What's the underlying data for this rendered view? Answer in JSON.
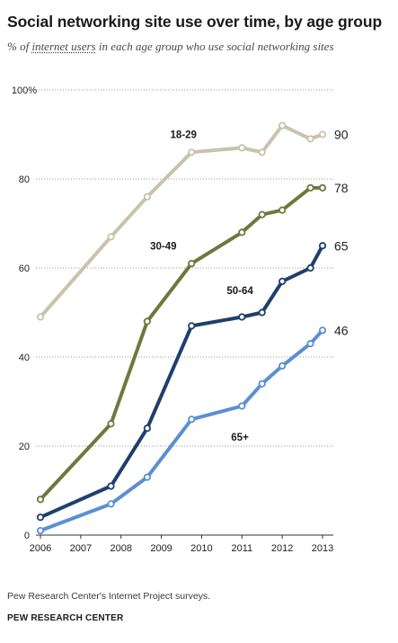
{
  "title": "Social networking site use over time, by age group",
  "subtitle": {
    "prefix": "% of ",
    "underlined": "internet users",
    "suffix": " in each age group who use social networking sites"
  },
  "footer": {
    "source": "Pew Research Center's Internet Project surveys.",
    "brand": "PEW RESEARCH CENTER"
  },
  "chart_data": {
    "type": "line",
    "title": "Social networking site use over time, by age group",
    "xlabel": "",
    "ylabel": "",
    "xlim": [
      2006,
      2013
    ],
    "ylim": [
      0,
      100
    ],
    "x_ticks": [
      "2006",
      "2007",
      "2008",
      "2009",
      "2010",
      "2011",
      "2012",
      "2013"
    ],
    "y_ticks": [
      0,
      20,
      40,
      60,
      80,
      100
    ],
    "y_top_tick_label": "100%",
    "grid": "horizontal dotted",
    "series": [
      {
        "name": "18-29",
        "color": "#c9c2ad",
        "end_label": "90",
        "points": [
          {
            "x": 2006.0,
            "y": 49
          },
          {
            "x": 2007.75,
            "y": 67
          },
          {
            "x": 2008.65,
            "y": 76
          },
          {
            "x": 2009.75,
            "y": 86
          },
          {
            "x": 2011.0,
            "y": 87
          },
          {
            "x": 2011.5,
            "y": 86
          },
          {
            "x": 2012.0,
            "y": 92
          },
          {
            "x": 2012.7,
            "y": 89
          },
          {
            "x": 2013.0,
            "y": 90
          }
        ]
      },
      {
        "name": "30-49",
        "color": "#6b7a3c",
        "end_label": "78",
        "points": [
          {
            "x": 2006.0,
            "y": 8
          },
          {
            "x": 2007.75,
            "y": 25
          },
          {
            "x": 2008.65,
            "y": 48
          },
          {
            "x": 2009.75,
            "y": 61
          },
          {
            "x": 2011.0,
            "y": 68
          },
          {
            "x": 2011.5,
            "y": 72
          },
          {
            "x": 2012.0,
            "y": 73
          },
          {
            "x": 2012.7,
            "y": 78
          },
          {
            "x": 2013.0,
            "y": 78
          }
        ]
      },
      {
        "name": "50-64",
        "color": "#1f3f6e",
        "end_label": "65",
        "points": [
          {
            "x": 2006.0,
            "y": 4
          },
          {
            "x": 2007.75,
            "y": 11
          },
          {
            "x": 2008.65,
            "y": 24
          },
          {
            "x": 2009.75,
            "y": 47
          },
          {
            "x": 2011.0,
            "y": 49
          },
          {
            "x": 2011.5,
            "y": 50
          },
          {
            "x": 2012.0,
            "y": 57
          },
          {
            "x": 2012.7,
            "y": 60
          },
          {
            "x": 2013.0,
            "y": 65
          }
        ]
      },
      {
        "name": "65+",
        "color": "#5b8fd2",
        "end_label": "46",
        "points": [
          {
            "x": 2006.0,
            "y": 1
          },
          {
            "x": 2007.75,
            "y": 7
          },
          {
            "x": 2008.65,
            "y": 13
          },
          {
            "x": 2009.75,
            "y": 26
          },
          {
            "x": 2011.0,
            "y": 29
          },
          {
            "x": 2011.5,
            "y": 34
          },
          {
            "x": 2012.0,
            "y": 38
          },
          {
            "x": 2012.7,
            "y": 43
          },
          {
            "x": 2013.0,
            "y": 46
          }
        ]
      }
    ]
  }
}
